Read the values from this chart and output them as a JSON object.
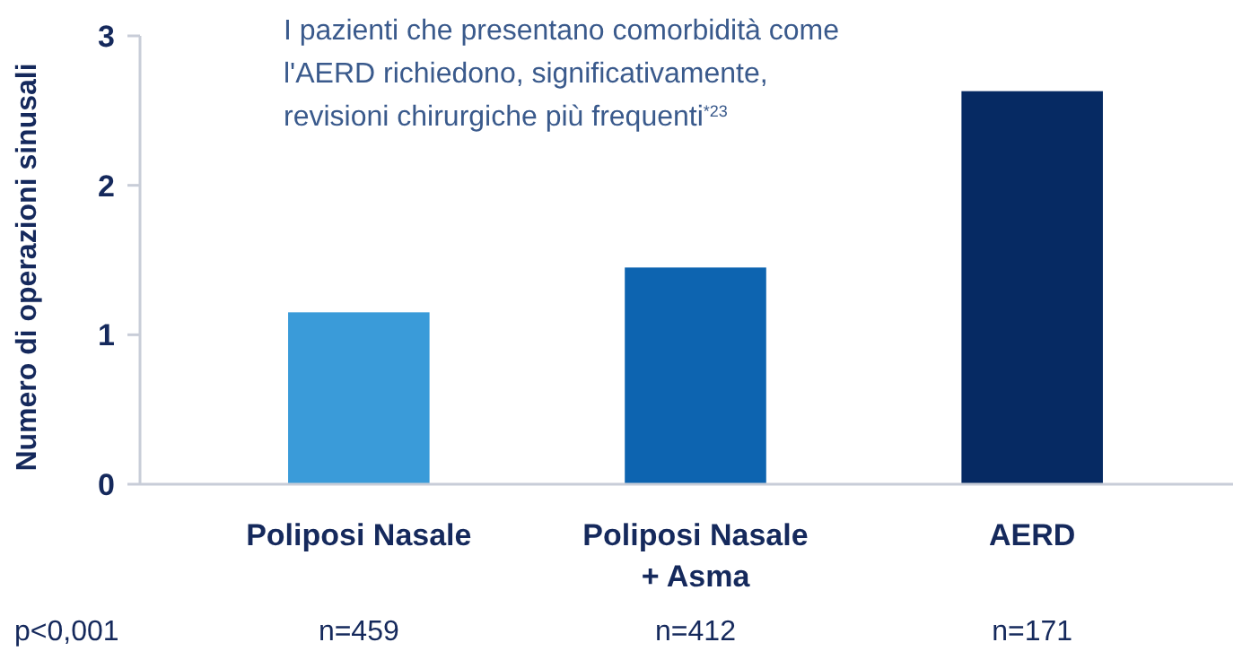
{
  "chart_data": {
    "type": "bar",
    "ylabel": "Numero di operazioni sinusali",
    "categories": [
      "Poliposi Nasale",
      "Poliposi Nasale + Asma",
      "AERD"
    ],
    "values": [
      1.15,
      1.45,
      2.63
    ],
    "colors": [
      "#3a9bd9",
      "#0d64b0",
      "#062a63"
    ],
    "ylim": [
      0,
      3
    ],
    "yticks": [
      0,
      1,
      2,
      3
    ],
    "grid": false,
    "annotations": [
      "I pazienti che presentano comorbidità come l'AERD richiedono, significativamente, revisioni chirurgiche più frequenti$^{*23}$",
      "p<0,001",
      "n=459",
      "n=412",
      "n=171"
    ]
  }
}
